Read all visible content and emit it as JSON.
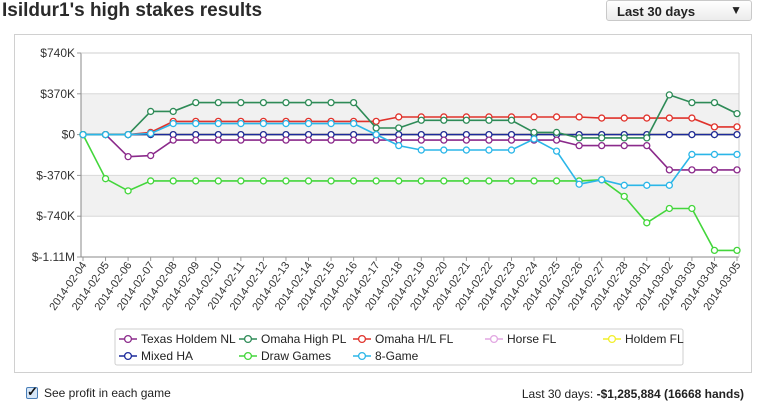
{
  "title": "Isildur1's high stakes results",
  "range_select": {
    "value": "Last 30 days",
    "arrow": "▼"
  },
  "footer": {
    "checkbox_label": "See profit in each game",
    "summary_prefix": "Last 30 days: ",
    "summary_value": "-$1,285,884 (16668 hands)"
  },
  "chart_data": {
    "type": "line",
    "title": "",
    "xlabel": "",
    "ylabel": "",
    "x": [
      "2014-02-04",
      "2014-02-05",
      "2014-02-06",
      "2014-02-07",
      "2014-02-08",
      "2014-02-09",
      "2014-02-10",
      "2014-02-11",
      "2014-02-12",
      "2014-02-13",
      "2014-02-14",
      "2014-02-15",
      "2014-02-16",
      "2014-02-17",
      "2014-02-18",
      "2014-02-19",
      "2014-02-20",
      "2014-02-21",
      "2014-02-22",
      "2014-02-23",
      "2014-02-24",
      "2014-02-25",
      "2014-02-26",
      "2014-02-27",
      "2014-02-28",
      "2014-03-01",
      "2014-03-02",
      "2014-03-03",
      "2014-03-04",
      "2014-03-05"
    ],
    "ylim": [
      -1110000,
      740000
    ],
    "yticks": [
      740000,
      370000,
      0,
      -370000,
      -740000,
      -1110000
    ],
    "ytick_labels": [
      "$740K",
      "$370K",
      "$0",
      "$-370K",
      "$-740K",
      "$-1.11M"
    ],
    "grid": true,
    "legend_position": "bottom",
    "series": [
      {
        "name": "Texas Holdem NL",
        "color": "#8b2a8b",
        "values": [
          0,
          0,
          -200000,
          -190000,
          -50000,
          -50000,
          -50000,
          -50000,
          -50000,
          -50000,
          -50000,
          -50000,
          -50000,
          -50000,
          -50000,
          -50000,
          -50000,
          -50000,
          -50000,
          -50000,
          -50000,
          -50000,
          -100000,
          -100000,
          -100000,
          -100000,
          -320000,
          -320000,
          -320000,
          -320000
        ]
      },
      {
        "name": "Omaha High PL",
        "color": "#2e8b57",
        "values": [
          0,
          0,
          0,
          210000,
          210000,
          290000,
          290000,
          290000,
          290000,
          290000,
          290000,
          290000,
          290000,
          60000,
          60000,
          130000,
          130000,
          130000,
          130000,
          130000,
          20000,
          20000,
          -30000,
          -30000,
          -30000,
          -30000,
          360000,
          290000,
          290000,
          190000
        ]
      },
      {
        "name": "Omaha H/L FL",
        "color": "#e0322b",
        "values": [
          0,
          0,
          0,
          20000,
          120000,
          120000,
          120000,
          120000,
          120000,
          120000,
          120000,
          120000,
          120000,
          120000,
          160000,
          160000,
          160000,
          160000,
          160000,
          160000,
          160000,
          160000,
          160000,
          150000,
          150000,
          150000,
          150000,
          150000,
          70000,
          70000
        ]
      },
      {
        "name": "Horse FL",
        "color": "#e2a6e2",
        "values": [
          0,
          0,
          0,
          0,
          0,
          0,
          0,
          0,
          0,
          0,
          0,
          0,
          0,
          0,
          0,
          0,
          0,
          0,
          0,
          0,
          0,
          0,
          0,
          0,
          0,
          0,
          0,
          0,
          0,
          0
        ]
      },
      {
        "name": "Holdem FL",
        "color": "#f2ef2a",
        "values": [
          0,
          0,
          0,
          0,
          0,
          0,
          0,
          0,
          0,
          0,
          0,
          0,
          0,
          0,
          0,
          0,
          0,
          0,
          0,
          0,
          0,
          0,
          0,
          0,
          0,
          0,
          0,
          0,
          0,
          0
        ]
      },
      {
        "name": "Mixed HA",
        "color": "#1c2a9c",
        "values": [
          0,
          0,
          0,
          0,
          0,
          0,
          0,
          0,
          0,
          0,
          0,
          0,
          0,
          0,
          0,
          0,
          0,
          0,
          0,
          0,
          0,
          0,
          0,
          0,
          0,
          0,
          0,
          0,
          0,
          0
        ]
      },
      {
        "name": "Draw Games",
        "color": "#43d63b",
        "values": [
          0,
          -400000,
          -510000,
          -420000,
          -420000,
          -420000,
          -420000,
          -420000,
          -420000,
          -420000,
          -420000,
          -420000,
          -420000,
          -420000,
          -420000,
          -420000,
          -420000,
          -420000,
          -420000,
          -420000,
          -420000,
          -420000,
          -420000,
          -410000,
          -560000,
          -800000,
          -670000,
          -670000,
          -1050000,
          -1050000
        ]
      },
      {
        "name": "8-Game",
        "color": "#2bb6e8",
        "values": [
          0,
          0,
          0,
          10000,
          100000,
          100000,
          100000,
          100000,
          100000,
          100000,
          100000,
          100000,
          100000,
          0,
          -100000,
          -140000,
          -140000,
          -140000,
          -140000,
          -140000,
          -40000,
          -150000,
          -450000,
          -410000,
          -460000,
          -460000,
          -460000,
          -180000,
          -180000,
          -180000
        ]
      }
    ]
  }
}
